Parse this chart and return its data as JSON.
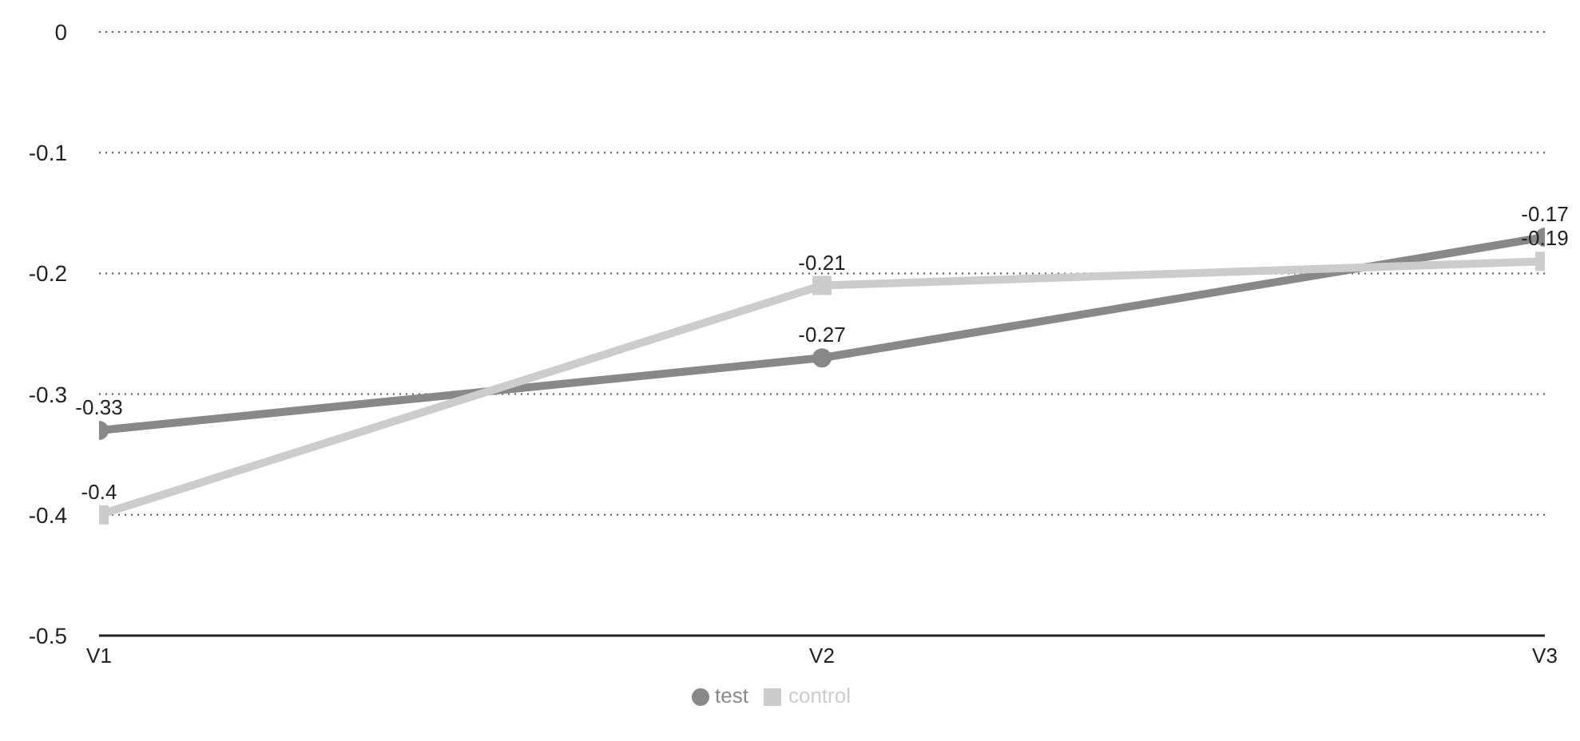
{
  "chart_data": {
    "type": "line",
    "categories": [
      "V1",
      "V2",
      "V3"
    ],
    "series": [
      {
        "name": "test",
        "color": "#888888",
        "marker": "circle",
        "values": [
          -0.33,
          -0.27,
          -0.17
        ]
      },
      {
        "name": "control",
        "color": "#cccccc",
        "marker": "square",
        "values": [
          -0.4,
          -0.21,
          -0.19
        ]
      }
    ],
    "ylim": [
      -0.5,
      0
    ],
    "yticks": [
      0,
      -0.1,
      -0.2,
      -0.3,
      -0.4,
      -0.5
    ],
    "grid": "y",
    "legend": "bottom",
    "data_labels": true,
    "line_style": "solid"
  }
}
